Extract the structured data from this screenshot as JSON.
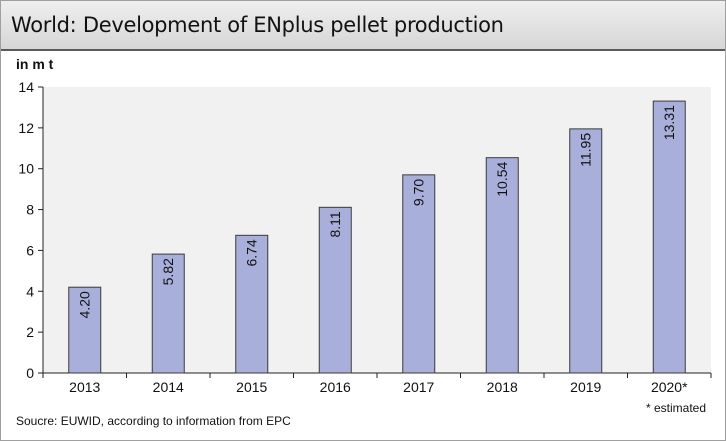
{
  "title": "World: Development of ENplus pellet production",
  "unit_label": "in m t",
  "source": "Soucre: EUWID, according to information from EPC",
  "footnote": "* estimated",
  "colors": {
    "bar": "#a9afdb",
    "bar_border": "#3a3a3a",
    "plot_bg": "#f1f1f1",
    "title_bg": "#dedede"
  },
  "chart_data": {
    "type": "bar",
    "title": "World: Development of ENplus pellet production",
    "ylabel": "in m t",
    "xlabel": "",
    "categories": [
      "2013",
      "2014",
      "2015",
      "2016",
      "2017",
      "2018",
      "2019",
      "2020*"
    ],
    "values": [
      4.2,
      5.82,
      6.74,
      8.11,
      9.7,
      10.54,
      11.95,
      13.31
    ],
    "value_labels": [
      "4.20",
      "5.82",
      "6.74",
      "8.11",
      "9.70",
      "10.54",
      "11.95",
      "13.31"
    ],
    "ylim": [
      0,
      14
    ],
    "yticks": [
      "0",
      "2",
      "4",
      "6",
      "8",
      "10",
      "12",
      "14"
    ],
    "grid": false,
    "legend": "none"
  }
}
